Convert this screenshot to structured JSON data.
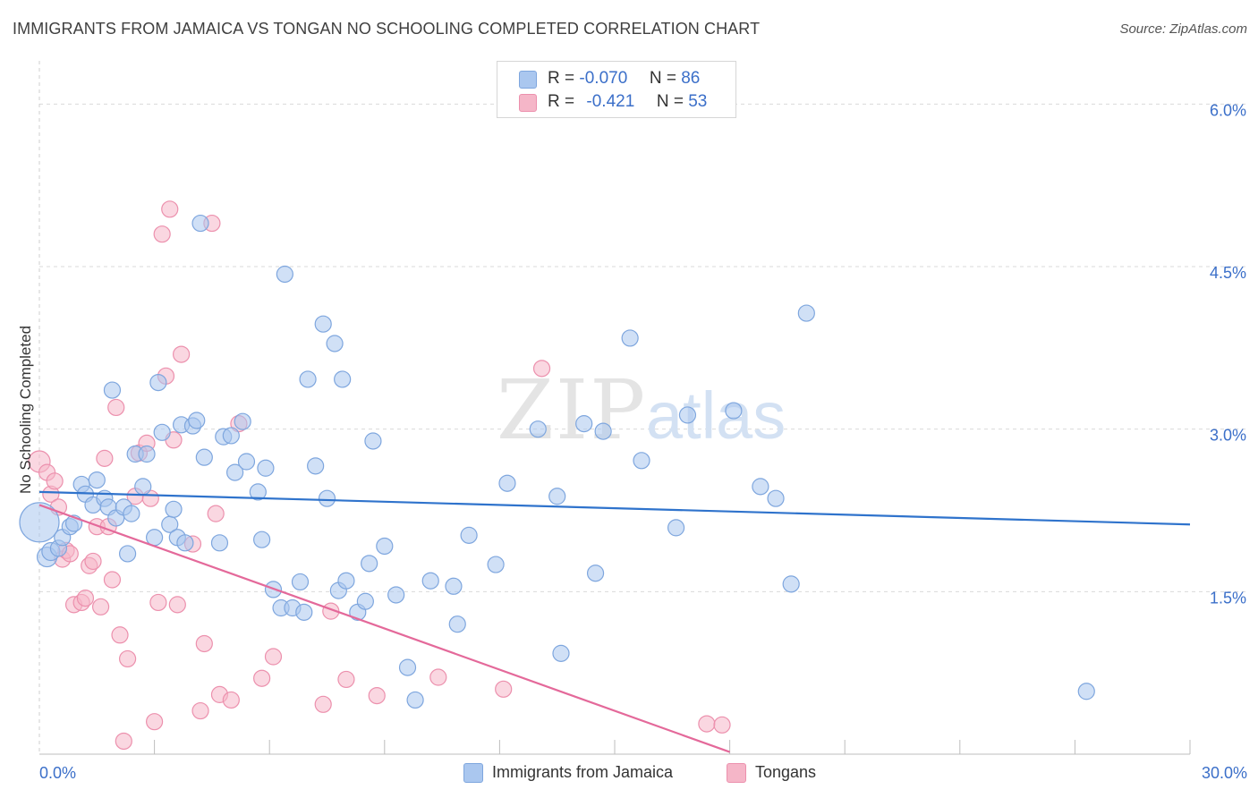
{
  "title": "IMMIGRANTS FROM JAMAICA VS TONGAN NO SCHOOLING COMPLETED CORRELATION CHART",
  "source": "Source: ZipAtlas.com",
  "watermark": {
    "zip": "ZIP",
    "atlas": "atlas"
  },
  "legend": {
    "r_label": "R =",
    "n_label": "N =",
    "rows": [
      {
        "r_value": "-0.070",
        "n_value": "86",
        "color": "#aac7ef"
      },
      {
        "r_value": "-0.421",
        "n_value": "53",
        "color": "#f5b6c8"
      }
    ]
  },
  "bottom_legend": [
    "Immigrants from Jamaica",
    "Tongans"
  ],
  "colors": {
    "blue_fill": "#aac7ef",
    "blue_stroke": "#7ea6de",
    "blue_line": "#2f73cc",
    "pink_fill": "#f5b6c8",
    "pink_stroke": "#ec90ad",
    "pink_line": "#e4699a",
    "tick_label": "#3b6fc9",
    "grid": "#d9d9d9"
  },
  "chart_data": {
    "type": "scatter",
    "title": "IMMIGRANTS FROM JAMAICA VS TONGAN NO SCHOOLING COMPLETED CORRELATION CHART",
    "xlabel": "",
    "ylabel": "No Schooling Completed",
    "xlim": [
      0,
      30
    ],
    "ylim": [
      0,
      6.3
    ],
    "x_tick_labels": [
      {
        "value": 0,
        "label": "0.0%"
      },
      {
        "value": 30,
        "label": "30.0%"
      }
    ],
    "y_tick_labels": [
      {
        "value": 1.5,
        "label": "1.5%"
      },
      {
        "value": 3.0,
        "label": "3.0%"
      },
      {
        "value": 4.5,
        "label": "4.5%"
      },
      {
        "value": 6.0,
        "label": "6.0%"
      }
    ],
    "x_minor_ticks": [
      3,
      6,
      9,
      12,
      15,
      18,
      21,
      24,
      27,
      30
    ],
    "series": [
      {
        "name": "Immigrants from Jamaica",
        "r": -0.07,
        "n": 86,
        "trend": {
          "x": [
            0,
            30
          ],
          "y": [
            2.42,
            2.12
          ]
        },
        "points": [
          [
            0.0,
            2.14,
            22
          ],
          [
            0.2,
            1.82,
            11
          ],
          [
            0.3,
            1.87,
            10
          ],
          [
            0.5,
            1.9,
            9
          ],
          [
            0.6,
            2.0,
            9
          ],
          [
            0.8,
            2.1,
            9
          ],
          [
            0.9,
            2.13,
            9
          ],
          [
            1.1,
            2.49,
            9
          ],
          [
            1.2,
            2.4,
            9
          ],
          [
            1.4,
            2.3,
            9
          ],
          [
            1.5,
            2.53,
            9
          ],
          [
            1.7,
            2.36,
            9
          ],
          [
            1.8,
            2.28,
            9
          ],
          [
            1.9,
            3.36,
            9
          ],
          [
            2.0,
            2.18,
            9
          ],
          [
            2.2,
            2.28,
            9
          ],
          [
            2.3,
            1.85,
            9
          ],
          [
            2.4,
            2.22,
            9
          ],
          [
            2.5,
            2.77,
            9
          ],
          [
            2.7,
            2.47,
            9
          ],
          [
            2.8,
            2.77,
            9
          ],
          [
            3.0,
            2.0,
            9
          ],
          [
            3.1,
            3.43,
            9
          ],
          [
            3.2,
            2.97,
            9
          ],
          [
            3.4,
            2.12,
            9
          ],
          [
            3.5,
            2.26,
            9
          ],
          [
            3.6,
            2.0,
            9
          ],
          [
            3.7,
            3.04,
            9
          ],
          [
            3.8,
            1.95,
            9
          ],
          [
            4.0,
            3.03,
            9
          ],
          [
            4.1,
            3.08,
            9
          ],
          [
            4.2,
            4.9,
            9
          ],
          [
            4.3,
            2.74,
            9
          ],
          [
            4.7,
            1.95,
            9
          ],
          [
            4.8,
            2.93,
            9
          ],
          [
            5.0,
            2.94,
            9
          ],
          [
            5.1,
            2.6,
            9
          ],
          [
            5.3,
            3.07,
            9
          ],
          [
            5.4,
            2.7,
            9
          ],
          [
            5.7,
            2.42,
            9
          ],
          [
            5.8,
            1.98,
            9
          ],
          [
            5.9,
            2.64,
            9
          ],
          [
            6.1,
            1.52,
            9
          ],
          [
            6.3,
            1.35,
            9
          ],
          [
            6.4,
            4.43,
            9
          ],
          [
            6.6,
            1.35,
            9
          ],
          [
            6.8,
            1.59,
            9
          ],
          [
            6.9,
            1.31,
            9
          ],
          [
            7.0,
            3.46,
            9
          ],
          [
            7.2,
            2.66,
            9
          ],
          [
            7.4,
            3.97,
            9
          ],
          [
            7.5,
            2.36,
            9
          ],
          [
            7.7,
            3.79,
            9
          ],
          [
            7.8,
            1.51,
            9
          ],
          [
            7.9,
            3.46,
            9
          ],
          [
            8.0,
            1.6,
            9
          ],
          [
            8.3,
            1.31,
            9
          ],
          [
            8.5,
            1.41,
            9
          ],
          [
            8.6,
            1.76,
            9
          ],
          [
            8.7,
            2.89,
            9
          ],
          [
            9.0,
            1.92,
            9
          ],
          [
            9.3,
            1.47,
            9
          ],
          [
            9.6,
            0.8,
            9
          ],
          [
            9.8,
            0.5,
            9
          ],
          [
            10.2,
            1.6,
            9
          ],
          [
            10.8,
            1.55,
            9
          ],
          [
            10.9,
            1.2,
            9
          ],
          [
            11.2,
            2.02,
            9
          ],
          [
            11.9,
            1.75,
            9
          ],
          [
            12.2,
            2.5,
            9
          ],
          [
            13.0,
            3.0,
            9
          ],
          [
            13.5,
            2.38,
            9
          ],
          [
            13.6,
            0.93,
            9
          ],
          [
            14.2,
            3.05,
            9
          ],
          [
            14.5,
            1.67,
            9
          ],
          [
            14.7,
            2.98,
            9
          ],
          [
            15.4,
            3.84,
            9
          ],
          [
            15.7,
            2.71,
            9
          ],
          [
            16.6,
            2.09,
            9
          ],
          [
            16.9,
            3.13,
            9
          ],
          [
            18.1,
            3.17,
            9
          ],
          [
            18.8,
            2.47,
            9
          ],
          [
            19.2,
            2.36,
            9
          ],
          [
            19.6,
            1.57,
            9
          ],
          [
            20.0,
            4.07,
            9
          ],
          [
            27.3,
            0.58,
            9
          ]
        ]
      },
      {
        "name": "Tongans",
        "r": -0.421,
        "n": 53,
        "trend": {
          "x": [
            0,
            18
          ],
          "y": [
            2.3,
            0.02
          ]
        },
        "points": [
          [
            0.0,
            2.7,
            12
          ],
          [
            0.2,
            2.6,
            9
          ],
          [
            0.3,
            2.4,
            9
          ],
          [
            0.4,
            2.52,
            9
          ],
          [
            0.5,
            2.28,
            9
          ],
          [
            0.6,
            1.8,
            9
          ],
          [
            0.7,
            1.88,
            9
          ],
          [
            0.8,
            1.85,
            9
          ],
          [
            0.9,
            1.38,
            9
          ],
          [
            1.1,
            1.4,
            9
          ],
          [
            1.2,
            1.44,
            9
          ],
          [
            1.3,
            1.74,
            9
          ],
          [
            1.4,
            1.78,
            9
          ],
          [
            1.5,
            2.1,
            9
          ],
          [
            1.6,
            1.36,
            9
          ],
          [
            1.7,
            2.73,
            9
          ],
          [
            1.8,
            2.1,
            9
          ],
          [
            1.9,
            1.61,
            9
          ],
          [
            2.0,
            3.2,
            9
          ],
          [
            2.1,
            1.1,
            9
          ],
          [
            2.2,
            0.12,
            9
          ],
          [
            2.3,
            0.88,
            9
          ],
          [
            2.5,
            2.38,
            9
          ],
          [
            2.6,
            2.78,
            9
          ],
          [
            2.8,
            2.87,
            9
          ],
          [
            2.9,
            2.36,
            9
          ],
          [
            3.0,
            0.3,
            9
          ],
          [
            3.1,
            1.4,
            9
          ],
          [
            3.2,
            4.8,
            9
          ],
          [
            3.3,
            3.49,
            9
          ],
          [
            3.4,
            5.03,
            9
          ],
          [
            3.5,
            2.9,
            9
          ],
          [
            3.6,
            1.38,
            9
          ],
          [
            3.7,
            3.69,
            9
          ],
          [
            4.0,
            1.94,
            9
          ],
          [
            4.2,
            0.4,
            9
          ],
          [
            4.3,
            1.02,
            9
          ],
          [
            4.5,
            4.9,
            9
          ],
          [
            4.6,
            2.22,
            9
          ],
          [
            4.7,
            0.55,
            9
          ],
          [
            5.0,
            0.5,
            9
          ],
          [
            5.2,
            3.05,
            9
          ],
          [
            5.8,
            0.7,
            9
          ],
          [
            6.1,
            0.9,
            9
          ],
          [
            7.4,
            0.46,
            9
          ],
          [
            7.6,
            1.32,
            9
          ],
          [
            8.0,
            0.69,
            9
          ],
          [
            8.8,
            0.54,
            9
          ],
          [
            10.4,
            0.71,
            9
          ],
          [
            12.1,
            0.6,
            9
          ],
          [
            13.1,
            3.56,
            9
          ],
          [
            17.4,
            0.28,
            9
          ],
          [
            17.8,
            0.27,
            9
          ]
        ]
      }
    ]
  }
}
